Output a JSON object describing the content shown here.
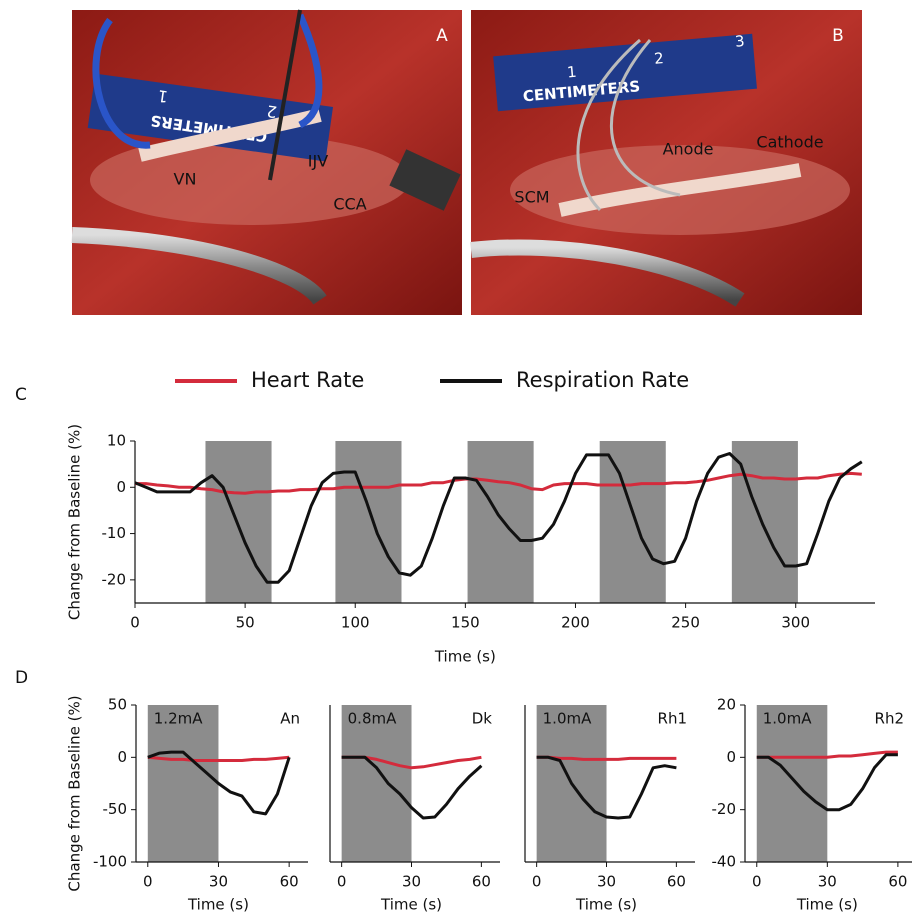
{
  "photos": [
    {
      "label": "A",
      "ruler_text": "CENTIMETERS",
      "ruler_digits": [
        "2",
        "1"
      ],
      "annotations": [
        "VN",
        "IJV",
        "CCA"
      ]
    },
    {
      "label": "B",
      "ruler_text": "CENTIMETERS",
      "ruler_digits": [
        "1",
        "2",
        "3"
      ],
      "annotations": [
        "SCM",
        "Anode",
        "Cathode"
      ]
    }
  ],
  "chart_data": [
    {
      "type": "line",
      "panel_label": "C",
      "xlabel": "Time (s)",
      "ylabel": "Change from Baseline (%)",
      "legend": true,
      "xlim": [
        0,
        336
      ],
      "ylim": [
        -25,
        10
      ],
      "xticks": [
        0,
        50,
        100,
        150,
        200,
        250,
        300
      ],
      "yticks": [
        -20,
        -10,
        0,
        10
      ],
      "stim_color": "#8c8c8c",
      "stim_intervals": [
        [
          32,
          62
        ],
        [
          91,
          121
        ],
        [
          151,
          181
        ],
        [
          211,
          241
        ],
        [
          271,
          301
        ]
      ],
      "x": [
        0,
        5,
        10,
        15,
        20,
        25,
        30,
        35,
        40,
        45,
        50,
        55,
        60,
        65,
        70,
        75,
        80,
        85,
        90,
        95,
        100,
        105,
        110,
        115,
        120,
        125,
        130,
        135,
        140,
        145,
        150,
        155,
        160,
        165,
        170,
        175,
        180,
        185,
        190,
        195,
        200,
        205,
        210,
        215,
        220,
        225,
        230,
        235,
        240,
        245,
        250,
        255,
        260,
        265,
        270,
        275,
        280,
        285,
        290,
        295,
        300,
        305,
        310,
        315,
        320,
        325,
        330
      ],
      "series": [
        {
          "name": "Heart Rate",
          "color": "#d42b3c",
          "values": [
            0.8,
            0.8,
            0.5,
            0.3,
            0,
            0,
            -0.3,
            -0.5,
            -1,
            -1.2,
            -1.3,
            -1,
            -1,
            -0.8,
            -0.8,
            -0.5,
            -0.5,
            -0.3,
            -0.3,
            0,
            0,
            0,
            0,
            0,
            0.5,
            0.5,
            0.5,
            1,
            1,
            1.5,
            1.8,
            1.8,
            1.5,
            1.2,
            1,
            0.5,
            -0.3,
            -0.5,
            0.5,
            0.8,
            0.8,
            0.8,
            0.5,
            0.5,
            0.5,
            0.5,
            0.8,
            0.8,
            0.8,
            1,
            1,
            1.2,
            1.5,
            2,
            2.5,
            2.8,
            2.5,
            2,
            2,
            1.8,
            1.8,
            2,
            2,
            2.5,
            2.8,
            3,
            2.8
          ]
        },
        {
          "name": "Respiration Rate",
          "color": "#111111",
          "values": [
            1,
            0,
            -1,
            -1,
            -1,
            -1,
            1,
            2.5,
            0,
            -6,
            -12,
            -17,
            -20.5,
            -20.5,
            -18,
            -11,
            -4,
            1,
            3,
            3.3,
            3.3,
            -3,
            -10,
            -15,
            -18.5,
            -19,
            -17,
            -11,
            -4,
            2,
            2,
            1.5,
            -2,
            -6,
            -9,
            -11.5,
            -11.5,
            -11,
            -8,
            -3,
            3,
            7,
            7,
            7,
            3,
            -4,
            -11,
            -15.5,
            -16.5,
            -16,
            -11,
            -3,
            3,
            6.5,
            7.3,
            5,
            -2,
            -8,
            -13,
            -17,
            -17,
            -16.5,
            -10,
            -3,
            2,
            4,
            5.5
          ]
        }
      ]
    },
    {
      "type": "line",
      "panel_label": "D",
      "xlabel": "Time (s)",
      "ylabel": "Change from Baseline (%)",
      "stim_label": "1.2mA",
      "subject": "An",
      "xlim": [
        -5,
        68
      ],
      "ylim": [
        -100,
        50
      ],
      "xticks": [
        0,
        30,
        60
      ],
      "yticks": [
        -100,
        -50,
        0,
        50
      ],
      "stim_color": "#8c8c8c",
      "stim_intervals": [
        [
          0,
          30
        ]
      ],
      "x": [
        0,
        5,
        10,
        15,
        20,
        25,
        30,
        35,
        40,
        45,
        50,
        55,
        60
      ],
      "series": [
        {
          "name": "Heart Rate",
          "color": "#d42b3c",
          "values": [
            0,
            -1,
            -2,
            -2,
            -3,
            -3,
            -3,
            -3,
            -3,
            -2,
            -2,
            -1,
            0
          ]
        },
        {
          "name": "Respiration Rate",
          "color": "#111111",
          "values": [
            0,
            4,
            5,
            5,
            -5,
            -15,
            -25,
            -33,
            -37,
            -52,
            -54,
            -35,
            0
          ]
        }
      ]
    },
    {
      "type": "line",
      "xlabel": "Time (s)",
      "stim_label": "0.8mA",
      "subject": "Dk",
      "xlim": [
        -5,
        68
      ],
      "ylim": [
        -100,
        50
      ],
      "xticks": [
        0,
        30,
        60
      ],
      "stim_color": "#8c8c8c",
      "stim_intervals": [
        [
          0,
          30
        ]
      ],
      "x": [
        0,
        5,
        10,
        15,
        20,
        25,
        30,
        35,
        40,
        45,
        50,
        55,
        60
      ],
      "series": [
        {
          "name": "Heart Rate",
          "color": "#d42b3c",
          "values": [
            0,
            0,
            0,
            -2,
            -5,
            -8,
            -10,
            -9,
            -7,
            -5,
            -3,
            -2,
            0
          ]
        },
        {
          "name": "Respiration Rate",
          "color": "#111111",
          "values": [
            0,
            0,
            0,
            -10,
            -25,
            -35,
            -48,
            -58,
            -57,
            -45,
            -30,
            -18,
            -8
          ]
        }
      ]
    },
    {
      "type": "line",
      "xlabel": "Time (s)",
      "stim_label": "1.0mA",
      "subject": "Rh1",
      "xlim": [
        -5,
        68
      ],
      "ylim": [
        -100,
        50
      ],
      "xticks": [
        0,
        30,
        60
      ],
      "stim_color": "#8c8c8c",
      "stim_intervals": [
        [
          0,
          30
        ]
      ],
      "x": [
        0,
        5,
        10,
        15,
        20,
        25,
        30,
        35,
        40,
        45,
        50,
        55,
        60
      ],
      "series": [
        {
          "name": "Heart Rate",
          "color": "#d42b3c",
          "values": [
            0,
            0,
            -1,
            -1,
            -2,
            -2,
            -2,
            -2,
            -1,
            -1,
            -1,
            -1,
            -1
          ]
        },
        {
          "name": "Respiration Rate",
          "color": "#111111",
          "values": [
            0,
            0,
            -3,
            -25,
            -40,
            -52,
            -57,
            -58,
            -57,
            -35,
            -10,
            -8,
            -10
          ]
        }
      ]
    },
    {
      "type": "line",
      "xlabel": "Time (s)",
      "stim_label": "1.0mA",
      "subject": "Rh2",
      "xlim": [
        -5,
        66
      ],
      "ylim": [
        -40,
        20
      ],
      "xticks": [
        0,
        30,
        60
      ],
      "yticks": [
        -40,
        -20,
        0,
        20
      ],
      "stim_color": "#8c8c8c",
      "stim_intervals": [
        [
          0,
          30
        ]
      ],
      "x": [
        0,
        5,
        10,
        15,
        20,
        25,
        30,
        35,
        40,
        45,
        50,
        55,
        60
      ],
      "series": [
        {
          "name": "Heart Rate",
          "color": "#d42b3c",
          "values": [
            0,
            0,
            0,
            0,
            0,
            0,
            0,
            0.5,
            0.5,
            1,
            1.5,
            2,
            2
          ]
        },
        {
          "name": "Respiration Rate",
          "color": "#111111",
          "values": [
            0,
            0,
            -3,
            -8,
            -13,
            -17,
            -20,
            -20,
            -18,
            -12,
            -4,
            1,
            1
          ]
        }
      ]
    }
  ]
}
